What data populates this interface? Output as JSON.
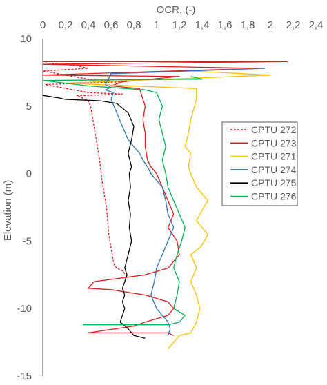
{
  "chart_data": {
    "type": "line",
    "title": "",
    "xlabel": "OCR, (-)",
    "ylabel": "Elevation (m)",
    "xlim": [
      0,
      2.4
    ],
    "ylim": [
      -15,
      10
    ],
    "x_ticks": [
      0,
      0.2,
      0.4,
      0.6,
      0.8,
      1,
      1.2,
      1.4,
      1.6,
      1.8,
      2,
      2.2,
      2.4
    ],
    "x_tick_labels": [
      "0",
      "0,2",
      "0,4",
      "0,6",
      "0,8",
      "1",
      "1,2",
      "1,4",
      "1,6",
      "1,8",
      "2",
      "2,2",
      "2,4"
    ],
    "y_ticks": [
      10,
      5,
      0,
      -5,
      -10,
      -15
    ],
    "y_tick_labels": [
      "10",
      "5",
      "0",
      "-5",
      "-10",
      "-15"
    ],
    "x_axis_position": "top",
    "grid": false,
    "legend_position": "right-middle",
    "series": [
      {
        "name": "CPTU 272",
        "color": "#e31a1c",
        "dash": "dashed",
        "x": [
          0.02,
          0.3,
          0.4,
          0.0,
          0.4,
          0.7,
          0.02,
          0.4,
          0.7,
          0.4,
          0.3,
          0.4,
          0.42,
          0.45,
          0.48,
          0.5,
          0.52,
          0.54,
          0.56,
          0.57,
          0.58,
          0.6,
          0.62,
          0.63,
          0.65,
          0.7,
          0.73,
          0.74,
          0.75
        ],
        "y": [
          8.2,
          8.0,
          7.8,
          7.6,
          7.0,
          6.8,
          6.6,
          6.0,
          5.9,
          5.8,
          5.8,
          5.4,
          5.0,
          3.5,
          2.0,
          1.0,
          -0.5,
          -1.5,
          -2.5,
          -3.5,
          -4.5,
          -5.5,
          -6.5,
          -6.8,
          -7.0,
          -7.2,
          -7.5,
          -7.6,
          -7.7
        ]
      },
      {
        "name": "CPTU 273",
        "color": "#e31a1c",
        "dash": "solid",
        "x": [
          0.0,
          2.15,
          0.5,
          0.0,
          1.9,
          0.0,
          1.2,
          0.7,
          0.6,
          0.85,
          0.88,
          0.9,
          0.88,
          0.9,
          0.9,
          0.92,
          0.95,
          1.0,
          1.05,
          1.1,
          1.15,
          1.1,
          1.18,
          1.2,
          1.1,
          0.9,
          0.45,
          0.4,
          0.6,
          0.9,
          1.1,
          1.15,
          1.1,
          0.9,
          0.8,
          0.4,
          1.1,
          1.15
        ],
        "y": [
          8.3,
          8.3,
          8.15,
          8.1,
          7.8,
          7.3,
          7.2,
          6.8,
          6.5,
          6.3,
          5.5,
          5.0,
          4.0,
          3.0,
          2.0,
          1.0,
          0.5,
          0.0,
          -1.0,
          -2.0,
          -3.0,
          -4.0,
          -5.0,
          -6.0,
          -7.0,
          -7.5,
          -8.0,
          -8.5,
          -8.6,
          -9.0,
          -9.5,
          -10.0,
          -10.5,
          -11.0,
          -11.3,
          -11.8,
          -11.8,
          -12.0
        ]
      },
      {
        "name": "CPTU 271",
        "color": "#ffc000",
        "dash": "solid",
        "x": [
          1.3,
          2.0,
          0.2,
          1.35,
          1.35,
          1.3,
          1.28,
          1.25,
          1.3,
          1.28,
          1.3,
          1.35,
          1.4,
          1.45,
          1.38,
          1.35,
          1.4,
          1.45,
          1.42,
          1.38,
          1.3,
          1.35,
          1.3,
          1.35,
          1.38,
          1.35,
          1.3,
          1.2,
          1.15,
          1.1
        ],
        "y": [
          7.6,
          7.3,
          6.7,
          6.3,
          5.5,
          4.0,
          3.0,
          2.0,
          1.5,
          0.5,
          0.0,
          -1.0,
          -1.5,
          -2.0,
          -3.0,
          -3.5,
          -4.0,
          -4.5,
          -5.0,
          -5.5,
          -6.0,
          -7.0,
          -8.0,
          -9.0,
          -10.0,
          -11.0,
          -11.8,
          -12.0,
          -12.5,
          -13.0
        ]
      },
      {
        "name": "CPTU 274",
        "color": "#2e75b6",
        "dash": "solid",
        "x": [
          1.95,
          0.6,
          0.55,
          0.6,
          0.55,
          0.62,
          0.6,
          0.65,
          0.7,
          0.75,
          0.8,
          0.85,
          0.88,
          0.92,
          0.95,
          1.0,
          1.05,
          1.08,
          1.1,
          1.15,
          1.1,
          1.05,
          1.0,
          0.98,
          0.95,
          1.0,
          1.05,
          1.1,
          1.12,
          1.1
        ],
        "y": [
          7.8,
          7.4,
          6.6,
          6.4,
          6.2,
          6.0,
          5.5,
          4.5,
          3.5,
          2.5,
          2.0,
          1.5,
          1.0,
          0.5,
          0.0,
          -0.5,
          -1.0,
          -2.0,
          -3.0,
          -4.0,
          -5.0,
          -6.0,
          -7.0,
          -8.0,
          -9.0,
          -10.0,
          -10.5,
          -11.0,
          -11.5,
          -12.0
        ]
      },
      {
        "name": "CPTU 275",
        "color": "#000000",
        "dash": "solid",
        "x": [
          0.0,
          0.15,
          0.2,
          0.5,
          0.65,
          0.75,
          0.8,
          0.78,
          0.75,
          0.78,
          0.76,
          0.77,
          0.75,
          0.77,
          0.76,
          0.78,
          0.75,
          0.72,
          0.74,
          0.72,
          0.7,
          0.72,
          0.7,
          0.72,
          0.68,
          0.75,
          0.8,
          0.9
        ],
        "y": [
          5.8,
          5.6,
          5.5,
          5.4,
          5.2,
          4.5,
          3.5,
          2.5,
          1.5,
          0.5,
          0.0,
          -1.0,
          -2.0,
          -3.0,
          -4.0,
          -5.0,
          -6.0,
          -7.0,
          -7.5,
          -8.0,
          -8.5,
          -9.0,
          -9.5,
          -10.0,
          -11.0,
          -11.5,
          -12.0,
          -12.2
        ]
      },
      {
        "name": "CPTU 276",
        "color": "#00b050",
        "dash": "solid",
        "x": [
          1.3,
          1.4,
          0.0,
          0.4,
          0.9,
          1.0,
          1.05,
          1.02,
          1.05,
          1.08,
          1.05,
          1.08,
          1.1,
          1.15,
          1.2,
          1.25,
          1.22,
          1.18,
          1.15,
          1.2,
          1.18,
          1.15,
          1.25,
          1.2,
          1.1,
          0.35
        ],
        "y": [
          7.2,
          7.0,
          6.9,
          6.5,
          6.2,
          6.0,
          5.0,
          4.0,
          3.0,
          2.0,
          1.0,
          0.0,
          -1.0,
          -2.0,
          -3.0,
          -4.0,
          -5.0,
          -6.0,
          -7.0,
          -8.0,
          -9.0,
          -10.0,
          -10.5,
          -11.0,
          -11.2,
          -11.2
        ]
      }
    ]
  }
}
